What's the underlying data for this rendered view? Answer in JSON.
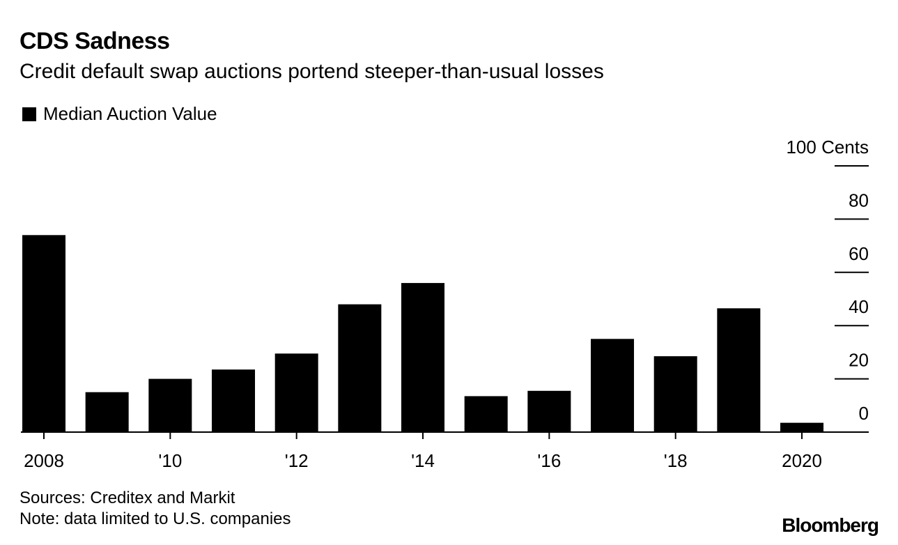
{
  "title": "CDS Sadness",
  "subtitle": "Credit default swap auctions portend steeper-than-usual losses",
  "legend": {
    "label": "Median Auction Value"
  },
  "sources": "Sources: Creditex and Markit",
  "note": "Note: data limited to U.S. companies",
  "brand": "Bloomberg",
  "chart_data": {
    "type": "bar",
    "title": "CDS Sadness",
    "subtitle": "Credit default swap auctions portend steeper-than-usual losses",
    "series": [
      {
        "name": "Median Auction Value",
        "x": [
          2008,
          2009,
          2010,
          2011,
          2012,
          2013,
          2014,
          2015,
          2016,
          2017,
          2018,
          2019,
          2020
        ],
        "values": [
          74,
          15,
          20,
          23.5,
          29.5,
          48,
          56,
          13.5,
          15.5,
          35,
          28.5,
          46.5,
          3.5
        ]
      }
    ],
    "xlabel": "",
    "ylabel": "",
    "ylim": [
      0,
      100
    ],
    "y_ticks": [
      0,
      20,
      40,
      60,
      80,
      100
    ],
    "y_tick_labels": [
      "0",
      "20",
      "40",
      "60",
      "80",
      "100 Cents"
    ],
    "y_axis_side": "right",
    "x_ticks": [
      2008,
      2010,
      2012,
      2014,
      2016,
      2018,
      2020
    ],
    "x_tick_labels": [
      "2008",
      "'10",
      "'12",
      "'14",
      "'16",
      "'18",
      "2020"
    ],
    "colors": {
      "bar": "#000000",
      "axis": "#000000"
    },
    "grid": false
  }
}
